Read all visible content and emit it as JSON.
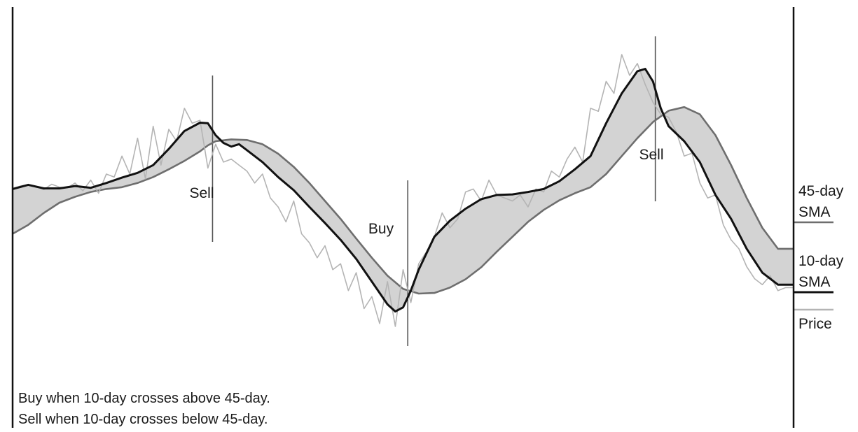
{
  "chart_data": {
    "type": "line",
    "title": "",
    "xlabel": "",
    "ylabel": "",
    "grid": false,
    "legend_position": "right",
    "series": [
      {
        "name": "Price",
        "color": "#b4b4b4",
        "values": [
          [
            0.0,
            0.76
          ],
          [
            0.01,
            0.8
          ],
          [
            0.02,
            0.82
          ],
          [
            0.03,
            0.79
          ],
          [
            0.04,
            0.74
          ],
          [
            0.05,
            0.83
          ],
          [
            0.06,
            0.78
          ],
          [
            0.07,
            0.77
          ],
          [
            0.08,
            0.85
          ],
          [
            0.09,
            0.72
          ],
          [
            0.1,
            0.9
          ],
          [
            0.11,
            0.68
          ],
          [
            0.12,
            1.0
          ],
          [
            0.13,
            0.95
          ],
          [
            0.14,
            1.3
          ],
          [
            0.15,
            1.0
          ],
          [
            0.16,
            1.6
          ],
          [
            0.17,
            0.92
          ],
          [
            0.18,
            1.8
          ],
          [
            0.19,
            1.15
          ],
          [
            0.2,
            1.75
          ],
          [
            0.21,
            1.55
          ],
          [
            0.22,
            2.1
          ],
          [
            0.23,
            1.85
          ],
          [
            0.24,
            1.9
          ],
          [
            0.25,
            1.1
          ],
          [
            0.26,
            1.5
          ],
          [
            0.27,
            1.2
          ],
          [
            0.28,
            1.25
          ],
          [
            0.29,
            1.15
          ],
          [
            0.3,
            1.05
          ],
          [
            0.31,
            0.85
          ],
          [
            0.32,
            1.0
          ],
          [
            0.33,
            0.6
          ],
          [
            0.34,
            0.45
          ],
          [
            0.35,
            0.2
          ],
          [
            0.36,
            0.55
          ],
          [
            0.37,
            0.0
          ],
          [
            0.38,
            -0.15
          ],
          [
            0.39,
            -0.4
          ],
          [
            0.4,
            -0.2
          ],
          [
            0.41,
            -0.6
          ],
          [
            0.42,
            -0.5
          ],
          [
            0.43,
            -0.95
          ],
          [
            0.44,
            -0.65
          ],
          [
            0.45,
            -1.25
          ],
          [
            0.46,
            -1.05
          ],
          [
            0.47,
            -1.5
          ],
          [
            0.48,
            -0.8
          ],
          [
            0.49,
            -1.55
          ],
          [
            0.5,
            -0.6
          ],
          [
            0.51,
            -1.15
          ],
          [
            0.52,
            -0.5
          ],
          [
            0.53,
            -0.3
          ],
          [
            0.54,
            -0.05
          ],
          [
            0.55,
            0.35
          ],
          [
            0.56,
            0.1
          ],
          [
            0.57,
            0.25
          ],
          [
            0.58,
            0.7
          ],
          [
            0.59,
            0.75
          ],
          [
            0.6,
            0.55
          ],
          [
            0.61,
            0.9
          ],
          [
            0.62,
            0.65
          ],
          [
            0.63,
            0.6
          ],
          [
            0.64,
            0.55
          ],
          [
            0.65,
            0.65
          ],
          [
            0.66,
            0.45
          ],
          [
            0.67,
            0.75
          ],
          [
            0.68,
            0.7
          ],
          [
            0.69,
            1.05
          ],
          [
            0.7,
            0.95
          ],
          [
            0.71,
            1.25
          ],
          [
            0.72,
            1.45
          ],
          [
            0.73,
            1.2
          ],
          [
            0.74,
            2.1
          ],
          [
            0.75,
            2.05
          ],
          [
            0.76,
            2.55
          ],
          [
            0.77,
            2.35
          ],
          [
            0.78,
            3.0
          ],
          [
            0.79,
            2.65
          ],
          [
            0.8,
            2.85
          ],
          [
            0.81,
            2.5
          ],
          [
            0.82,
            2.2
          ],
          [
            0.83,
            2.0
          ],
          [
            0.84,
            1.95
          ],
          [
            0.85,
            1.7
          ],
          [
            0.86,
            1.3
          ],
          [
            0.87,
            1.35
          ],
          [
            0.88,
            0.85
          ],
          [
            0.89,
            0.6
          ],
          [
            0.9,
            0.65
          ],
          [
            0.91,
            0.15
          ],
          [
            0.92,
            -0.1
          ],
          [
            0.93,
            -0.25
          ],
          [
            0.94,
            -0.55
          ],
          [
            0.95,
            -0.75
          ],
          [
            0.96,
            -0.85
          ],
          [
            0.97,
            -0.7
          ],
          [
            0.98,
            -0.95
          ],
          [
            0.99,
            -0.9
          ],
          [
            1.0,
            -0.9
          ]
        ]
      },
      {
        "name": "10-day SMA",
        "color": "#111111",
        "values": [
          [
            0.0,
            0.75
          ],
          [
            0.02,
            0.82
          ],
          [
            0.04,
            0.76
          ],
          [
            0.06,
            0.76
          ],
          [
            0.08,
            0.8
          ],
          [
            0.1,
            0.77
          ],
          [
            0.12,
            0.85
          ],
          [
            0.14,
            0.94
          ],
          [
            0.16,
            1.02
          ],
          [
            0.18,
            1.15
          ],
          [
            0.2,
            1.42
          ],
          [
            0.22,
            1.72
          ],
          [
            0.24,
            1.86
          ],
          [
            0.25,
            1.85
          ],
          [
            0.26,
            1.65
          ],
          [
            0.27,
            1.52
          ],
          [
            0.28,
            1.46
          ],
          [
            0.29,
            1.5
          ],
          [
            0.3,
            1.4
          ],
          [
            0.32,
            1.2
          ],
          [
            0.34,
            0.95
          ],
          [
            0.36,
            0.73
          ],
          [
            0.38,
            0.45
          ],
          [
            0.4,
            0.18
          ],
          [
            0.42,
            -0.1
          ],
          [
            0.44,
            -0.42
          ],
          [
            0.46,
            -0.8
          ],
          [
            0.48,
            -1.18
          ],
          [
            0.49,
            -1.3
          ],
          [
            0.5,
            -1.23
          ],
          [
            0.51,
            -0.95
          ],
          [
            0.52,
            -0.6
          ],
          [
            0.54,
            -0.05
          ],
          [
            0.56,
            0.22
          ],
          [
            0.58,
            0.42
          ],
          [
            0.6,
            0.58
          ],
          [
            0.62,
            0.65
          ],
          [
            0.64,
            0.66
          ],
          [
            0.66,
            0.7
          ],
          [
            0.68,
            0.75
          ],
          [
            0.7,
            0.88
          ],
          [
            0.72,
            1.08
          ],
          [
            0.74,
            1.3
          ],
          [
            0.76,
            1.85
          ],
          [
            0.78,
            2.35
          ],
          [
            0.8,
            2.72
          ],
          [
            0.81,
            2.76
          ],
          [
            0.82,
            2.55
          ],
          [
            0.83,
            2.1
          ],
          [
            0.84,
            1.8
          ],
          [
            0.86,
            1.55
          ],
          [
            0.88,
            1.2
          ],
          [
            0.9,
            0.65
          ],
          [
            0.92,
            0.25
          ],
          [
            0.94,
            -0.25
          ],
          [
            0.96,
            -0.65
          ],
          [
            0.98,
            -0.85
          ],
          [
            1.0,
            -0.85
          ]
        ]
      },
      {
        "name": "45-day SMA",
        "color": "#6e6e6e",
        "values": [
          [
            0.0,
            0.0
          ],
          [
            0.02,
            0.15
          ],
          [
            0.04,
            0.35
          ],
          [
            0.06,
            0.52
          ],
          [
            0.08,
            0.62
          ],
          [
            0.1,
            0.7
          ],
          [
            0.12,
            0.75
          ],
          [
            0.14,
            0.78
          ],
          [
            0.16,
            0.85
          ],
          [
            0.18,
            0.95
          ],
          [
            0.2,
            1.08
          ],
          [
            0.22,
            1.22
          ],
          [
            0.24,
            1.38
          ],
          [
            0.25,
            1.48
          ],
          [
            0.26,
            1.55
          ],
          [
            0.28,
            1.58
          ],
          [
            0.3,
            1.57
          ],
          [
            0.32,
            1.5
          ],
          [
            0.34,
            1.34
          ],
          [
            0.36,
            1.12
          ],
          [
            0.38,
            0.85
          ],
          [
            0.4,
            0.55
          ],
          [
            0.42,
            0.25
          ],
          [
            0.44,
            -0.08
          ],
          [
            0.46,
            -0.4
          ],
          [
            0.48,
            -0.7
          ],
          [
            0.5,
            -0.92
          ],
          [
            0.52,
            -1.0
          ],
          [
            0.54,
            -0.99
          ],
          [
            0.56,
            -0.9
          ],
          [
            0.58,
            -0.76
          ],
          [
            0.6,
            -0.56
          ],
          [
            0.62,
            -0.3
          ],
          [
            0.64,
            -0.05
          ],
          [
            0.66,
            0.2
          ],
          [
            0.68,
            0.4
          ],
          [
            0.7,
            0.56
          ],
          [
            0.72,
            0.68
          ],
          [
            0.74,
            0.78
          ],
          [
            0.76,
            1.0
          ],
          [
            0.78,
            1.3
          ],
          [
            0.8,
            1.6
          ],
          [
            0.82,
            1.87
          ],
          [
            0.84,
            2.06
          ],
          [
            0.86,
            2.12
          ],
          [
            0.88,
            2.0
          ],
          [
            0.9,
            1.65
          ],
          [
            0.92,
            1.15
          ],
          [
            0.94,
            0.6
          ],
          [
            0.96,
            0.1
          ],
          [
            0.98,
            -0.25
          ],
          [
            1.0,
            -0.25
          ]
        ]
      }
    ],
    "signals": [
      {
        "label": "Sell",
        "x": 0.256
      },
      {
        "label": "Buy",
        "x": 0.506
      },
      {
        "label": "Sell",
        "x": 0.823
      }
    ],
    "legend": [
      {
        "lines": [
          "45-day",
          "SMA"
        ],
        "color": "#6e6e6e"
      },
      {
        "lines": [
          "10-day",
          "SMA"
        ],
        "color": "#111111"
      },
      {
        "lines": [
          "Price"
        ],
        "color": "#b4b4b4"
      }
    ],
    "notes": [
      "Buy when 10-day crosses above 45-day.",
      "Sell when 10-day crosses below 45-day."
    ],
    "fill_color": "#d3d3d3"
  }
}
